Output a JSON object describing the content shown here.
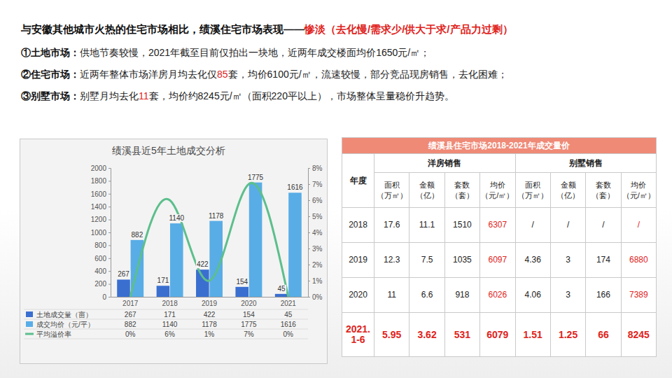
{
  "header": {
    "title": "与安徽其他城市火热的住宅市场相比，绩溪住宅市场表现——",
    "title_highlight": "惨淡（去化慢/需求少/供大于求/产品力过剩）",
    "points": [
      {
        "label": "①土地市场：",
        "parts": [
          "供地节奏较慢，2021年截至目前仅拍出一块地，近两年成交楼面均价1650元/㎡；"
        ]
      },
      {
        "label": "②住宅市场：",
        "parts": [
          "近两年整体市场洋房月均去化仅",
          "85",
          "套，均价6100元/㎡，流速较慢，部分竞品现房销售，去化困难；"
        ]
      },
      {
        "label": "③别墅市场：",
        "parts": [
          "别墅月均去化",
          "11",
          "套，均价约8245元/㎡（面积220平以上），市场整体呈量稳价升趋势。"
        ]
      }
    ]
  },
  "chart_data": {
    "type": "bar",
    "title": "绩溪县近5年土地成交分析",
    "categories": [
      "2017",
      "2018",
      "2019",
      "2020",
      "2021"
    ],
    "series": [
      {
        "name": "土地成交量（亩）",
        "color": "#3a6fd0",
        "values": [
          267,
          171,
          422,
          154,
          45
        ]
      },
      {
        "name": "成交均价（元/平）",
        "color": "#58ade6",
        "values": [
          882,
          1140,
          1178,
          1775,
          1616
        ]
      },
      {
        "name": "平均溢价率",
        "type": "line",
        "axis": "y2",
        "color": "#5cbf8c",
        "values": [
          0,
          6,
          1,
          7,
          0
        ],
        "value_labels": [
          "0%",
          "6%",
          "1%",
          "7%",
          "0%"
        ]
      }
    ],
    "ylim": [
      0,
      2000
    ],
    "yticks": [
      0,
      200,
      400,
      600,
      800,
      1000,
      1200,
      1400,
      1600,
      1800,
      2000
    ],
    "y2lim": [
      0,
      8
    ],
    "y2ticks": [
      {
        "value": 0,
        "label": "0%"
      },
      {
        "value": 1,
        "label": "1%"
      },
      {
        "value": 2,
        "label": "2%"
      },
      {
        "value": 3,
        "label": "3%"
      },
      {
        "value": 4,
        "label": "4%"
      },
      {
        "value": 5,
        "label": "5%"
      },
      {
        "value": 6,
        "label": "6%"
      },
      {
        "value": 7,
        "label": "7%"
      },
      {
        "value": 8,
        "label": "8%"
      }
    ],
    "data_labels": true,
    "grid": false,
    "legend": "bottom"
  },
  "table": {
    "title": "绩溪县住宅市场2018-2021年成交量价",
    "corner": "年度",
    "groups": [
      "洋房销售",
      "别墅销售"
    ],
    "columns": [
      "面积（万㎡）",
      "金额（亿）",
      "套数（套）",
      "均价（元/㎡）",
      "面积（万㎡）",
      "金额（亿）",
      "套数（套）",
      "均价（元/㎡）"
    ],
    "rows": [
      [
        "2018",
        "17.6",
        "11.1",
        "1510",
        "6307",
        "/",
        "/",
        "/",
        "/"
      ],
      [
        "2019",
        "12.3",
        "7.5",
        "1035",
        "6097",
        "4.36",
        "3",
        "174",
        "6880"
      ],
      [
        "2020",
        "11",
        "6.6",
        "918",
        "6026",
        "4.06",
        "3",
        "166",
        "7389"
      ],
      [
        "2021.1-6",
        "5.95",
        "3.62",
        "531",
        "6079",
        "1.51",
        "1.25",
        "66",
        "8245"
      ]
    ]
  }
}
